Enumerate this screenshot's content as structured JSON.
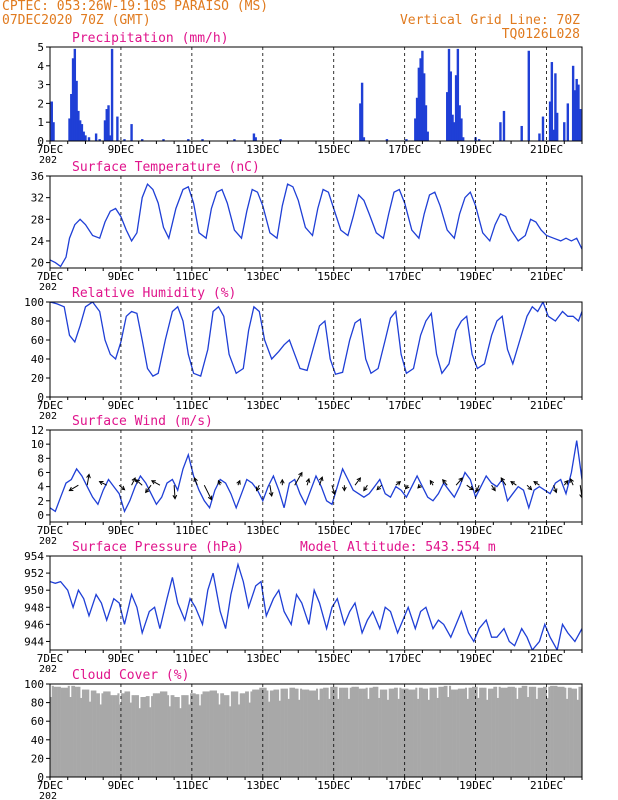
{
  "header": {
    "line1": "CPTEC:  053:26W-19:10S  PARAISO (MS)",
    "line2": "07DEC2020 70Z (GMT)",
    "grid_note": "Vertical Grid Line: 70Z",
    "code": "TQ0126L028"
  },
  "colors": {
    "title": "#e0148c",
    "header": "#e07a1e",
    "line": "#1f3fd6",
    "bar": "#1f3fd6",
    "cloud": "#a8a8a8",
    "arrow": "#000000"
  },
  "x_axis": {
    "days": [
      "7DEC",
      "9DEC",
      "11DEC",
      "13DEC",
      "15DEC",
      "17DEC",
      "19DEC",
      "21DEC"
    ],
    "truncated_label": "202"
  },
  "chart_data": [
    {
      "id": "precip",
      "type": "bar",
      "title": "Precipitation (mm/h)",
      "ylim": [
        0,
        5
      ],
      "yticks": [
        0,
        1,
        2,
        3,
        4,
        5
      ],
      "x_start_day": 7,
      "x_end_day": 22,
      "x": [
        7.05,
        7.1,
        7.55,
        7.6,
        7.65,
        7.7,
        7.75,
        7.8,
        7.85,
        7.9,
        7.95,
        8.0,
        8.1,
        8.3,
        8.4,
        8.55,
        8.6,
        8.65,
        8.7,
        8.75,
        8.9,
        9.1,
        9.3,
        9.6,
        10.2,
        10.9,
        11.3,
        12.2,
        12.75,
        12.8,
        13.5,
        15.75,
        15.8,
        15.85,
        16.5,
        17.05,
        17.3,
        17.35,
        17.4,
        17.45,
        17.5,
        17.55,
        17.6,
        17.65,
        18.2,
        18.25,
        18.3,
        18.35,
        18.4,
        18.45,
        18.5,
        18.55,
        18.6,
        18.65,
        19.0,
        19.1,
        19.7,
        19.8,
        20.3,
        20.5,
        20.8,
        20.9,
        21.1,
        21.15,
        21.2,
        21.25,
        21.3,
        21.5,
        21.6,
        21.75,
        21.8,
        21.85,
        21.9,
        21.95
      ],
      "values": [
        2.1,
        1.0,
        1.2,
        2.5,
        4.4,
        4.9,
        3.2,
        1.6,
        1.1,
        0.9,
        0.5,
        0.3,
        0.2,
        0.4,
        0.1,
        1.1,
        1.7,
        1.9,
        0.3,
        4.9,
        1.3,
        0.1,
        0.9,
        0.1,
        0.1,
        0.1,
        0.1,
        0.1,
        0.4,
        0.2,
        0.1,
        2.0,
        3.1,
        0.2,
        0.1,
        0.1,
        1.2,
        2.3,
        3.9,
        4.4,
        4.8,
        3.6,
        1.9,
        0.5,
        2.6,
        4.9,
        3.7,
        1.4,
        1.0,
        3.5,
        4.9,
        1.9,
        1.2,
        0.2,
        0.2,
        0.1,
        1.0,
        1.6,
        0.8,
        4.8,
        0.4,
        1.3,
        2.1,
        4.2,
        0.6,
        3.6,
        1.5,
        1.0,
        2.0,
        4.0,
        2.7,
        3.3,
        3.0,
        1.7
      ],
      "dashed_top_grid": true
    },
    {
      "id": "temp",
      "type": "line",
      "title": "Surface Temperature (nC)",
      "ylim": [
        19,
        36
      ],
      "yticks": [
        20,
        24,
        28,
        32,
        36
      ],
      "x_start_day": 7,
      "x_end_day": 22,
      "x": [
        7.0,
        7.15,
        7.3,
        7.45,
        7.55,
        7.7,
        7.85,
        8.0,
        8.2,
        8.4,
        8.55,
        8.7,
        8.85,
        9.0,
        9.15,
        9.3,
        9.45,
        9.6,
        9.75,
        9.9,
        10.05,
        10.2,
        10.35,
        10.55,
        10.75,
        10.9,
        11.05,
        11.2,
        11.4,
        11.55,
        11.7,
        11.85,
        12.0,
        12.2,
        12.4,
        12.55,
        12.7,
        12.85,
        13.0,
        13.2,
        13.4,
        13.55,
        13.7,
        13.85,
        14.0,
        14.2,
        14.4,
        14.55,
        14.7,
        14.85,
        15.0,
        15.2,
        15.4,
        15.55,
        15.7,
        15.85,
        16.0,
        16.2,
        16.4,
        16.55,
        16.7,
        16.85,
        17.0,
        17.2,
        17.4,
        17.55,
        17.7,
        17.85,
        18.0,
        18.2,
        18.4,
        18.55,
        18.7,
        18.85,
        19.0,
        19.2,
        19.4,
        19.55,
        19.7,
        19.85,
        20.0,
        20.2,
        20.4,
        20.55,
        20.7,
        20.85,
        21.0,
        21.2,
        21.4,
        21.55,
        21.7,
        21.85,
        22.0
      ],
      "values": [
        20.5,
        20.0,
        19.3,
        21.0,
        24.5,
        27.0,
        28.0,
        27.0,
        25.0,
        24.5,
        27.5,
        29.5,
        30.0,
        28.5,
        26.0,
        24.0,
        25.5,
        32.0,
        34.5,
        33.5,
        31.0,
        26.5,
        24.5,
        30.0,
        33.5,
        34.0,
        31.0,
        25.5,
        24.5,
        30.0,
        33.0,
        33.5,
        31.0,
        26.0,
        24.5,
        29.5,
        33.5,
        33.0,
        30.5,
        25.5,
        24.5,
        30.5,
        34.5,
        34.0,
        31.5,
        26.5,
        25.0,
        30.0,
        33.5,
        33.0,
        30.0,
        26.0,
        25.0,
        28.5,
        32.5,
        31.5,
        29.0,
        25.5,
        24.5,
        29.0,
        33.0,
        33.5,
        31.0,
        26.0,
        24.5,
        29.0,
        32.5,
        33.0,
        30.5,
        26.0,
        24.5,
        29.0,
        32.0,
        33.0,
        30.5,
        25.5,
        24.0,
        27.0,
        29.0,
        28.5,
        26.0,
        24.0,
        25.0,
        28.0,
        27.5,
        26.0,
        25.0,
        24.5,
        24.0,
        24.5,
        24.0,
        24.5,
        22.5
      ]
    },
    {
      "id": "rh",
      "type": "line",
      "title": "Relative Humidity (%)",
      "ylim": [
        0,
        100
      ],
      "yticks": [
        0,
        20,
        40,
        60,
        80,
        100
      ],
      "x_start_day": 7,
      "x_end_day": 22,
      "x": [
        7.0,
        7.2,
        7.4,
        7.55,
        7.7,
        7.85,
        8.0,
        8.2,
        8.4,
        8.55,
        8.7,
        8.85,
        9.0,
        9.15,
        9.3,
        9.45,
        9.6,
        9.75,
        9.9,
        10.05,
        10.25,
        10.45,
        10.6,
        10.75,
        10.9,
        11.05,
        11.25,
        11.45,
        11.6,
        11.75,
        11.9,
        12.05,
        12.25,
        12.45,
        12.6,
        12.75,
        12.9,
        13.05,
        13.25,
        13.45,
        13.6,
        13.75,
        13.9,
        14.05,
        14.25,
        14.45,
        14.6,
        14.75,
        14.9,
        15.05,
        15.25,
        15.45,
        15.6,
        15.75,
        15.9,
        16.05,
        16.25,
        16.45,
        16.6,
        16.75,
        16.9,
        17.05,
        17.25,
        17.45,
        17.6,
        17.75,
        17.9,
        18.05,
        18.25,
        18.45,
        18.6,
        18.75,
        18.9,
        19.05,
        19.25,
        19.45,
        19.6,
        19.75,
        19.9,
        20.05,
        20.25,
        20.45,
        20.6,
        20.75,
        20.9,
        21.05,
        21.25,
        21.45,
        21.6,
        21.75,
        21.9,
        22.0
      ],
      "values": [
        100,
        98,
        95,
        65,
        58,
        75,
        95,
        100,
        90,
        60,
        45,
        40,
        58,
        85,
        90,
        88,
        60,
        30,
        22,
        25,
        60,
        90,
        95,
        80,
        45,
        25,
        22,
        50,
        90,
        95,
        85,
        45,
        25,
        30,
        70,
        95,
        90,
        60,
        40,
        48,
        55,
        60,
        45,
        30,
        28,
        55,
        75,
        80,
        40,
        24,
        26,
        60,
        78,
        82,
        40,
        25,
        30,
        60,
        83,
        90,
        45,
        25,
        30,
        65,
        80,
        88,
        45,
        25,
        35,
        70,
        80,
        85,
        45,
        30,
        35,
        65,
        80,
        85,
        50,
        35,
        60,
        85,
        95,
        90,
        100,
        85,
        80,
        90,
        85,
        85,
        80,
        90
      ]
    },
    {
      "id": "wind",
      "type": "line",
      "title": "Surface Wind (m/s)",
      "ylim": [
        -1,
        12
      ],
      "yticks": [
        0,
        2,
        4,
        6,
        8,
        10,
        12
      ],
      "x_start_day": 7,
      "x_end_day": 22,
      "x": [
        7.0,
        7.15,
        7.3,
        7.45,
        7.6,
        7.75,
        7.9,
        8.05,
        8.2,
        8.35,
        8.5,
        8.65,
        8.8,
        8.95,
        9.1,
        9.25,
        9.4,
        9.55,
        9.7,
        9.85,
        10.0,
        10.15,
        10.3,
        10.45,
        10.6,
        10.75,
        10.9,
        11.05,
        11.2,
        11.35,
        11.5,
        11.65,
        11.8,
        11.95,
        12.1,
        12.25,
        12.4,
        12.55,
        12.7,
        12.85,
        13.0,
        13.15,
        13.3,
        13.45,
        13.6,
        13.75,
        13.9,
        14.05,
        14.2,
        14.35,
        14.5,
        14.65,
        14.8,
        14.95,
        15.1,
        15.25,
        15.4,
        15.55,
        15.7,
        15.85,
        16.0,
        16.15,
        16.3,
        16.45,
        16.6,
        16.75,
        16.9,
        17.05,
        17.2,
        17.35,
        17.5,
        17.65,
        17.8,
        17.95,
        18.1,
        18.25,
        18.4,
        18.55,
        18.7,
        18.85,
        19.0,
        19.15,
        19.3,
        19.45,
        19.6,
        19.75,
        19.9,
        20.05,
        20.2,
        20.35,
        20.5,
        20.65,
        20.8,
        20.95,
        21.1,
        21.25,
        21.4,
        21.55,
        21.7,
        21.85,
        22.0
      ],
      "values": [
        1.0,
        0.5,
        2.5,
        4.5,
        5.0,
        6.5,
        5.5,
        4.0,
        2.5,
        1.5,
        3.5,
        5.0,
        4.0,
        3.0,
        0.5,
        2.0,
        4.0,
        5.5,
        4.5,
        3.0,
        1.5,
        2.5,
        4.5,
        5.0,
        3.5,
        6.5,
        8.5,
        5.5,
        3.5,
        2.0,
        1.0,
        3.5,
        5.0,
        4.5,
        3.0,
        1.0,
        3.0,
        5.0,
        4.5,
        3.5,
        2.0,
        4.0,
        5.5,
        3.5,
        1.0,
        4.5,
        5.0,
        3.0,
        1.5,
        3.5,
        5.5,
        4.0,
        2.0,
        1.5,
        4.0,
        6.5,
        5.0,
        3.5,
        3.0,
        2.5,
        3.0,
        4.0,
        5.0,
        3.0,
        2.5,
        4.0,
        3.5,
        2.5,
        4.0,
        5.5,
        4.0,
        2.5,
        2.0,
        3.0,
        4.5,
        3.5,
        2.5,
        4.0,
        6.0,
        5.0,
        2.5,
        4.0,
        5.5,
        4.5,
        4.0,
        5.0,
        2.0,
        3.0,
        4.0,
        3.5,
        1.0,
        3.5,
        4.0,
        3.5,
        3.0,
        4.5,
        5.0,
        3.0,
        6.0,
        10.5,
        5.0
      ],
      "arrows_x": [
        7.8,
        8.05,
        8.6,
        8.95,
        9.3,
        9.6,
        9.85,
        10.1,
        10.5,
        11.15,
        11.35,
        11.8,
        12.3,
        12.9,
        13.2,
        13.55,
        13.9,
        14.25,
        14.6,
        14.95,
        15.3,
        15.6,
        15.95,
        16.35,
        16.75,
        17.1,
        17.45,
        17.8,
        18.2,
        18.45,
        18.75,
        19.1,
        19.45,
        19.85,
        20.15,
        20.45,
        20.8,
        21.2,
        21.5,
        21.75,
        21.95
      ],
      "arrows_u": [
        -1.0,
        0.2,
        -0.8,
        0.6,
        0.4,
        -0.7,
        -0.6,
        -0.9,
        0.1,
        -0.3,
        0.8,
        -0.2,
        0.2,
        -0.3,
        0.2,
        0.0,
        0.8,
        0.2,
        0.3,
        0.3,
        0.0,
        0.6,
        -0.4,
        -0.5,
        0.5,
        -0.3,
        -0.3,
        -0.3,
        -0.5,
        0.7,
        0.7,
        -0.3,
        0.4,
        -0.5,
        -0.6,
        0.5,
        -0.6,
        0.3,
        0.4,
        -0.3,
        0.2
      ],
      "arrows_v": [
        -0.6,
        1.2,
        0.4,
        -0.5,
        0.8,
        0.6,
        -0.8,
        0.5,
        -1.5,
        0.8,
        -1.6,
        0.5,
        0.5,
        -0.6,
        -1.2,
        0.6,
        1.4,
        0.7,
        0.9,
        -1.0,
        -0.6,
        0.8,
        -0.6,
        -0.5,
        0.4,
        -0.4,
        -0.3,
        0.5,
        0.6,
        0.8,
        -0.5,
        -0.7,
        -0.6,
        0.8,
        0.4,
        -0.5,
        0.4,
        -0.8,
        0.5,
        0.7,
        -1.4
      ]
    },
    {
      "id": "pressure",
      "type": "line",
      "title": "Surface Pressure (hPa)",
      "annotation": "Model Altitude: 543.554 m",
      "ylim": [
        943,
        954
      ],
      "yticks": [
        944,
        946,
        948,
        950,
        952,
        954
      ],
      "x_start_day": 7,
      "x_end_day": 22,
      "x": [
        7.0,
        7.15,
        7.3,
        7.5,
        7.65,
        7.8,
        7.95,
        8.1,
        8.3,
        8.45,
        8.6,
        8.8,
        8.95,
        9.1,
        9.3,
        9.45,
        9.6,
        9.8,
        9.95,
        10.1,
        10.3,
        10.45,
        10.6,
        10.8,
        10.95,
        11.1,
        11.3,
        11.45,
        11.6,
        11.8,
        11.95,
        12.1,
        12.3,
        12.45,
        12.6,
        12.8,
        12.95,
        13.1,
        13.3,
        13.45,
        13.6,
        13.8,
        13.95,
        14.1,
        14.3,
        14.45,
        14.6,
        14.8,
        14.95,
        15.1,
        15.3,
        15.45,
        15.6,
        15.8,
        15.95,
        16.1,
        16.3,
        16.45,
        16.6,
        16.8,
        16.95,
        17.1,
        17.3,
        17.45,
        17.6,
        17.8,
        17.95,
        18.1,
        18.3,
        18.45,
        18.6,
        18.8,
        18.95,
        19.1,
        19.3,
        19.45,
        19.6,
        19.8,
        19.95,
        20.1,
        20.3,
        20.45,
        20.6,
        20.8,
        20.95,
        21.1,
        21.3,
        21.45,
        21.6,
        21.8,
        22.0
      ],
      "values": [
        951.0,
        950.8,
        951.0,
        950.0,
        948.0,
        950.0,
        949.0,
        947.0,
        949.5,
        948.5,
        946.5,
        949.0,
        948.5,
        946.0,
        949.5,
        948.0,
        945.0,
        947.5,
        948.0,
        945.5,
        949.0,
        951.5,
        948.5,
        946.5,
        949.0,
        948.0,
        946.0,
        950.0,
        952.0,
        947.5,
        945.5,
        949.5,
        953.0,
        951.0,
        948.0,
        950.5,
        951.0,
        947.0,
        949.0,
        950.0,
        947.5,
        946.0,
        949.5,
        948.5,
        946.0,
        950.0,
        948.5,
        945.5,
        948.0,
        949.0,
        946.0,
        947.5,
        948.5,
        945.0,
        946.5,
        947.5,
        945.5,
        948.0,
        947.5,
        945.0,
        946.5,
        948.0,
        945.5,
        947.5,
        948.0,
        945.5,
        946.5,
        946.0,
        944.5,
        946.0,
        947.5,
        945.0,
        944.0,
        945.5,
        946.5,
        944.5,
        944.5,
        945.5,
        944.0,
        943.5,
        945.5,
        944.5,
        943.0,
        944.0,
        946.0,
        944.5,
        943.0,
        946.0,
        945.0,
        944.0,
        945.5
      ]
    },
    {
      "id": "cloud",
      "type": "area",
      "title": "Cloud Cover (%)",
      "ylim": [
        0,
        100
      ],
      "yticks": [
        0,
        20,
        40,
        60,
        80,
        100
      ],
      "x_start_day": 7,
      "x_end_day": 22,
      "x": [
        7.0,
        7.2,
        7.4,
        7.6,
        7.8,
        8.0,
        8.2,
        8.4,
        8.6,
        8.8,
        9.0,
        9.2,
        9.4,
        9.6,
        9.8,
        10.0,
        10.2,
        10.4,
        10.6,
        10.8,
        11.0,
        11.2,
        11.4,
        11.6,
        11.8,
        12.0,
        12.2,
        12.4,
        12.6,
        12.8,
        13.0,
        13.2,
        13.4,
        13.6,
        13.8,
        14.0,
        14.2,
        14.4,
        14.6,
        14.8,
        15.0,
        15.2,
        15.4,
        15.6,
        15.8,
        16.0,
        16.2,
        16.4,
        16.6,
        16.8,
        17.0,
        17.2,
        17.4,
        17.6,
        17.8,
        18.0,
        18.2,
        18.4,
        18.6,
        18.8,
        19.0,
        19.2,
        19.4,
        19.6,
        19.8,
        20.0,
        20.2,
        20.4,
        20.6,
        20.8,
        21.0,
        21.2,
        21.4,
        21.6,
        21.8,
        22.0
      ],
      "values": [
        98,
        97,
        96,
        98,
        97,
        94,
        93,
        90,
        92,
        88,
        90,
        92,
        88,
        86,
        87,
        90,
        92,
        88,
        86,
        88,
        90,
        89,
        92,
        93,
        90,
        88,
        92,
        90,
        92,
        94,
        96,
        93,
        94,
        95,
        96,
        95,
        94,
        93,
        95,
        96,
        97,
        96,
        96,
        97,
        95,
        96,
        97,
        94,
        95,
        96,
        95,
        94,
        96,
        95,
        96,
        97,
        98,
        94,
        95,
        96,
        97,
        96,
        95,
        97,
        96,
        97,
        96,
        98,
        97,
        96,
        97,
        98,
        97,
        96,
        95,
        97
      ]
    }
  ]
}
